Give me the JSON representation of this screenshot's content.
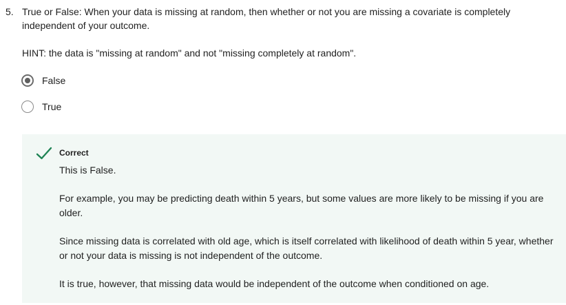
{
  "question": {
    "number": "5.",
    "text": "True or False: When your data is missing at random, then whether or not you are missing a covariate is completely independent of your outcome.",
    "hint": "HINT: the data is \"missing at random\" and not \"missing completely at random\"."
  },
  "options": [
    {
      "label": "False",
      "selected": true
    },
    {
      "label": "True",
      "selected": false
    }
  ],
  "feedback": {
    "status": "Correct",
    "paragraphs": [
      "This is False.",
      "For example, you may be predicting death within 5 years, but some values are more likely to be missing if you are older.",
      "Since missing data is correlated with old age, which is itself correlated with likelihood of death within 5 year, whether or not your data is missing is not independent of the outcome.",
      "It is true, however, that missing data would be independent of the outcome when conditioned on age."
    ],
    "icon": "checkmark-icon",
    "accent_color": "#1f8354",
    "background_color": "#f2f8f5"
  }
}
